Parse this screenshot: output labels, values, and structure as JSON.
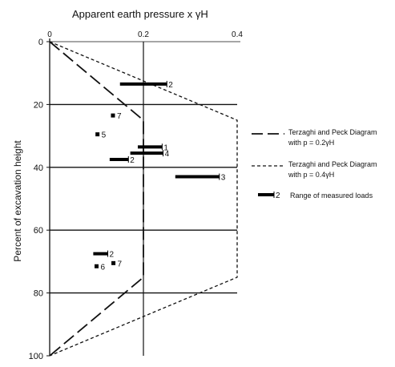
{
  "chart_data": {
    "type": "line",
    "title": "Apparent earth pressure x γH",
    "xlabel": "",
    "ylabel": "Percent of excavation height",
    "xlim": [
      0,
      0.4
    ],
    "ylim": [
      0,
      100
    ],
    "y_inverted": true,
    "x_axis_position": "top",
    "x_ticks": [
      "0",
      "0.2",
      "0.4"
    ],
    "y_ticks": [
      "0",
      "20",
      "40",
      "60",
      "80",
      "100"
    ],
    "grid": {
      "horizontal_at": [
        20,
        40,
        60,
        80
      ],
      "vertical_at": [
        0.2
      ]
    },
    "legend_position": "right",
    "series": [
      {
        "name": "Terzaghi and Peck Diagram with p = 0.2γH",
        "style": "long-dash",
        "x": [
          0,
          0.2,
          0.2,
          0
        ],
        "y": [
          0,
          25,
          75,
          100
        ]
      },
      {
        "name": "Terzaghi and Peck Diagram with p = 0.4γH",
        "style": "short-dash",
        "x": [
          0,
          0.4,
          0.4,
          0
        ],
        "y": [
          0,
          25,
          75,
          100
        ]
      }
    ],
    "measured_loads_legend": {
      "marker": "thick-bar",
      "label_number": "2",
      "label": "Range of measured loads"
    },
    "measured_loads": [
      {
        "label": "2",
        "x_min": 0.15,
        "x_max": 0.25,
        "y": 13.5
      },
      {
        "label": "7",
        "x": 0.135,
        "y": 23.5
      },
      {
        "label": "5",
        "x": 0.102,
        "y": 29.5
      },
      {
        "label": "1",
        "x_min": 0.188,
        "x_max": 0.24,
        "y": 33.5
      },
      {
        "label": "4",
        "x_min": 0.172,
        "x_max": 0.242,
        "y": 35.5
      },
      {
        "label": "2",
        "x_min": 0.128,
        "x_max": 0.168,
        "y": 37.5
      },
      {
        "label": "3",
        "x_min": 0.268,
        "x_max": 0.362,
        "y": 43
      },
      {
        "label": "2",
        "x_min": 0.093,
        "x_max": 0.124,
        "y": 67.5
      },
      {
        "label": "7",
        "x": 0.136,
        "y": 70.5
      },
      {
        "label": "6",
        "x": 0.1,
        "y": 71.5
      }
    ]
  }
}
